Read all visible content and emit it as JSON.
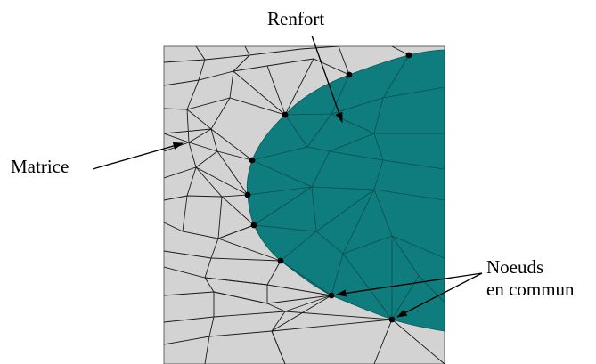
{
  "labels": {
    "renfort": "Renfort",
    "matrice": "Matrice",
    "noeuds_line1": "Noeuds",
    "noeuds_line2": "en commun"
  },
  "colors": {
    "matrix_fill": "#d3d3d3",
    "reinforcement_fill": "#0f7d7d",
    "mesh_line": "#1a1a1a",
    "node": "#000000"
  }
}
